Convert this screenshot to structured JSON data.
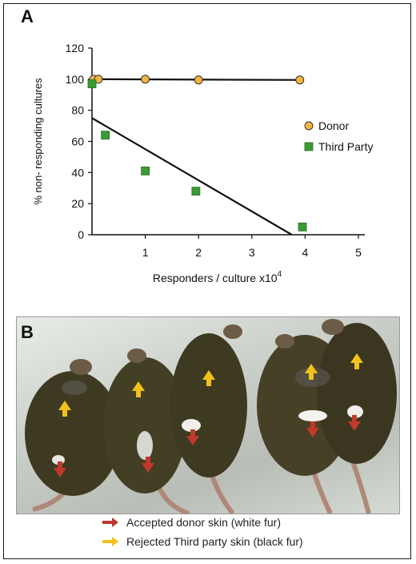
{
  "panel_a_label": "A",
  "panel_b_label": "B",
  "chart_data": {
    "type": "scatter",
    "title": "",
    "xlabel": "Responders / culture x10",
    "xlabel_superscript": "4",
    "ylabel": "% non- responding cultures",
    "xlim": [
      0,
      5
    ],
    "ylim": [
      0,
      120
    ],
    "x_ticks": [
      1,
      2,
      3,
      4,
      5
    ],
    "y_ticks": [
      0,
      20,
      40,
      60,
      80,
      100,
      120
    ],
    "grid": false,
    "legend_position": "right",
    "series": [
      {
        "name": "Donor",
        "marker": "circle",
        "color": "#f0b642",
        "points": [
          [
            0.03,
            100
          ],
          [
            0.12,
            100
          ],
          [
            1.0,
            100
          ],
          [
            2.0,
            99.5
          ],
          [
            3.9,
            99.5
          ]
        ],
        "fit_line": [
          [
            0,
            100
          ],
          [
            3.95,
            99.5
          ]
        ]
      },
      {
        "name": "Third Party",
        "marker": "square",
        "color": "#3b9a35",
        "points": [
          [
            0.0,
            97
          ],
          [
            0.25,
            64
          ],
          [
            1.0,
            41
          ],
          [
            1.95,
            28
          ],
          [
            3.95,
            5
          ]
        ],
        "fit_line": [
          [
            0,
            75
          ],
          [
            3.75,
            0
          ]
        ]
      }
    ]
  },
  "photo": {
    "legend": [
      {
        "arrow_color": "#c0392b",
        "text": "Accepted donor skin (white fur)"
      },
      {
        "arrow_color": "#f2c21b",
        "text": "Rejected Third party skin (black fur)"
      }
    ]
  }
}
